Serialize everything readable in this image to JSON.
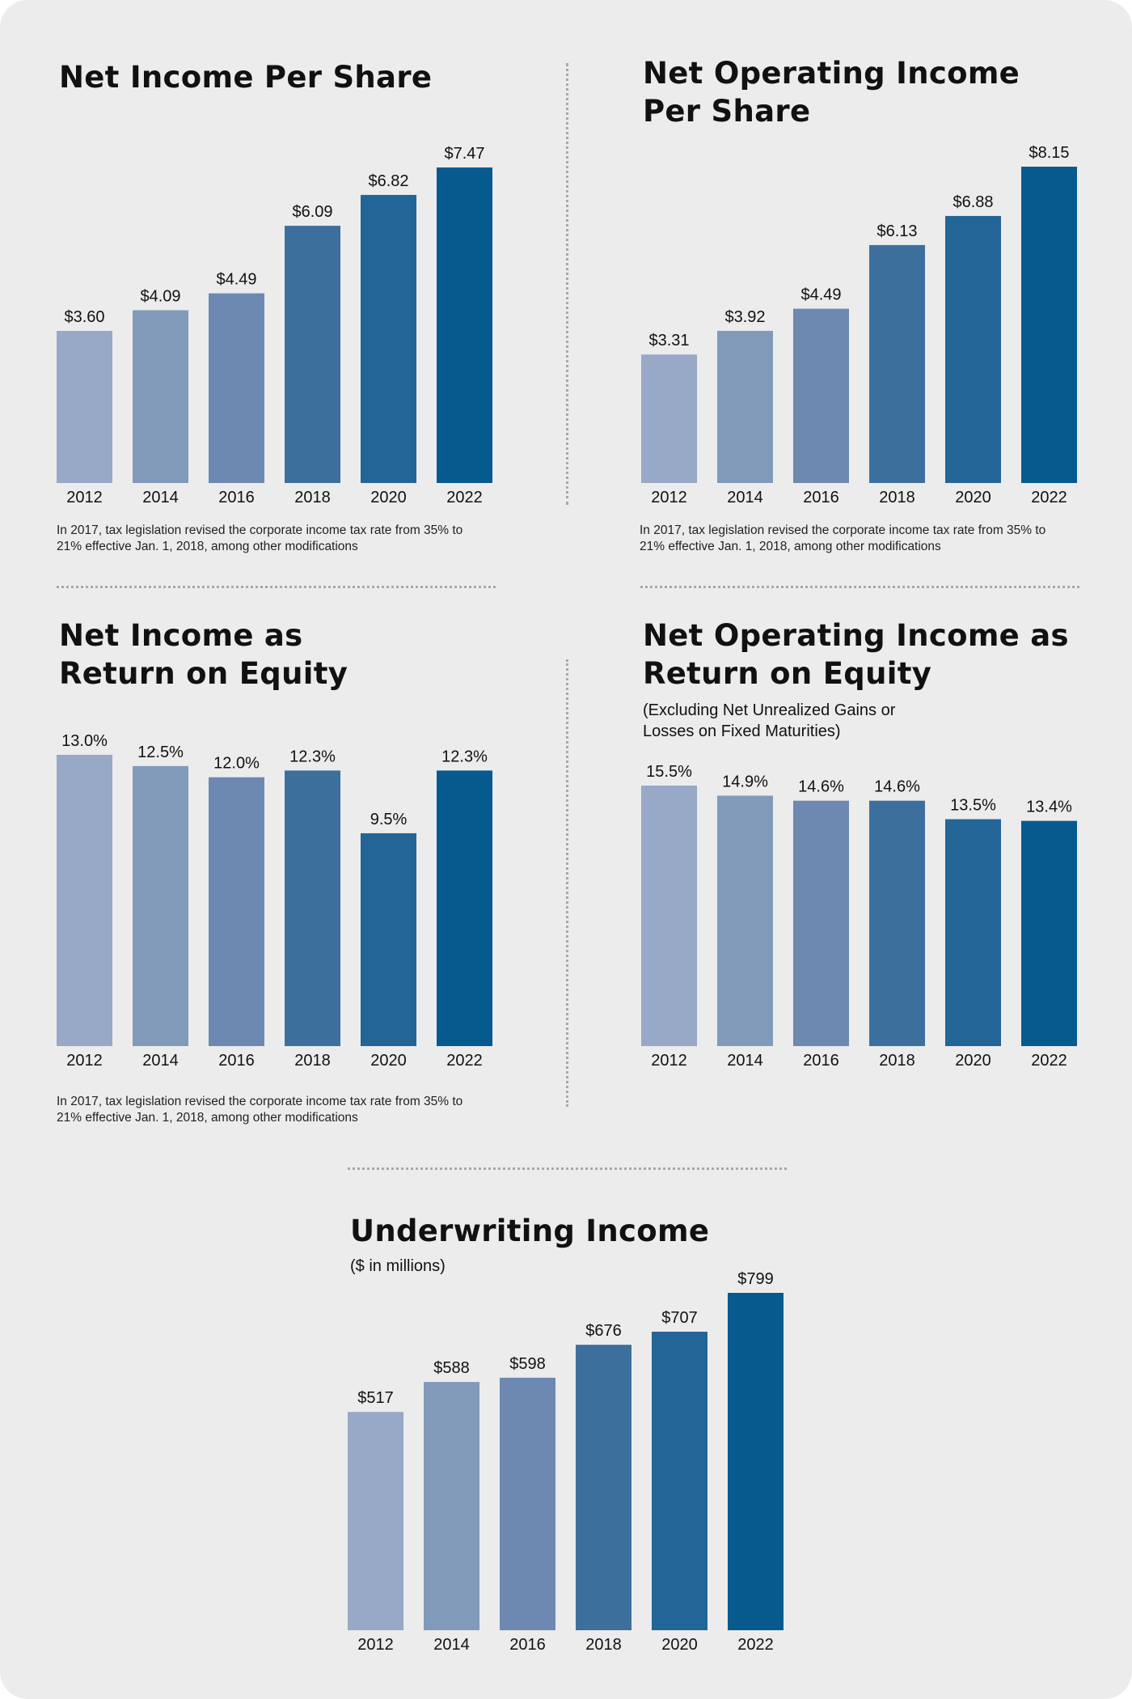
{
  "colors": [
    "#97a9c6",
    "#819ab9",
    "#6d89b1",
    "#3d6f9d",
    "#236597",
    "#065a8e"
  ],
  "chart_data": [
    {
      "type": "bar",
      "title": "Net Income Per Share",
      "categories": [
        "2012",
        "2014",
        "2016",
        "2018",
        "2020",
        "2022"
      ],
      "values": [
        3.6,
        4.09,
        4.49,
        6.09,
        6.82,
        7.47
      ],
      "value_labels": [
        "$3.60",
        "$4.09",
        "$4.49",
        "$6.09",
        "$6.82",
        "$7.47"
      ],
      "ylim": [
        0,
        7.47
      ],
      "note": "In 2017, tax legislation revised the corporate income tax rate from 35% to\n21% effective Jan. 1, 2018, among other modifications"
    },
    {
      "type": "bar",
      "title": "Net Operating Income\nPer Share",
      "categories": [
        "2012",
        "2014",
        "2016",
        "2018",
        "2020",
        "2022"
      ],
      "values": [
        3.31,
        3.92,
        4.49,
        6.13,
        6.88,
        8.15
      ],
      "value_labels": [
        "$3.31",
        "$3.92",
        "$4.49",
        "$6.13",
        "$6.88",
        "$8.15"
      ],
      "ylim": [
        0,
        8.15
      ],
      "note": "In 2017, tax legislation revised the corporate income tax rate from 35% to\n21% effective Jan. 1, 2018, among other modifications"
    },
    {
      "type": "bar",
      "title": "Net Income as\nReturn on Equity",
      "categories": [
        "2012",
        "2014",
        "2016",
        "2018",
        "2020",
        "2022"
      ],
      "values": [
        13.0,
        12.5,
        12.0,
        12.3,
        9.5,
        12.3
      ],
      "value_labels": [
        "13.0%",
        "12.5%",
        "12.0%",
        "12.3%",
        "9.5%",
        "12.3%"
      ],
      "ylim": [
        0,
        13.0
      ],
      "note": "In 2017, tax legislation revised the corporate income tax rate from 35% to\n21% effective Jan. 1, 2018, among other modifications"
    },
    {
      "type": "bar",
      "title": "Net Operating Income as\nReturn on Equity",
      "subtitle": "(Excluding Net Unrealized Gains or\nLosses on Fixed Maturities)",
      "categories": [
        "2012",
        "2014",
        "2016",
        "2018",
        "2020",
        "2022"
      ],
      "values": [
        15.5,
        14.9,
        14.6,
        14.6,
        13.5,
        13.4
      ],
      "value_labels": [
        "15.5%",
        "14.9%",
        "14.6%",
        "14.6%",
        "13.5%",
        "13.4%"
      ],
      "ylim": [
        0,
        15.5
      ]
    },
    {
      "type": "bar",
      "title": "Underwriting Income",
      "subtitle": "($ in millions)",
      "categories": [
        "2012",
        "2014",
        "2016",
        "2018",
        "2020",
        "2022"
      ],
      "values": [
        517,
        588,
        598,
        676,
        707,
        799
      ],
      "value_labels": [
        "$517",
        "$588",
        "$598",
        "$676",
        "$707",
        "$799"
      ],
      "ylim": [
        0,
        799
      ]
    }
  ]
}
